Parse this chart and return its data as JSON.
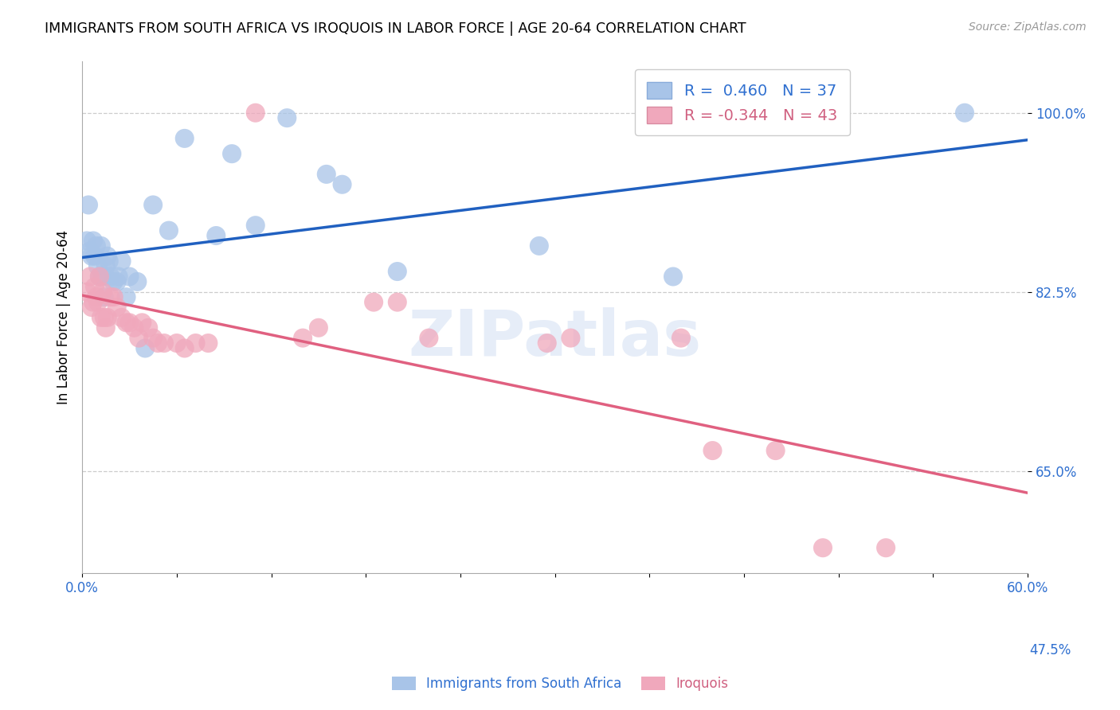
{
  "title": "IMMIGRANTS FROM SOUTH AFRICA VS IROQUOIS IN LABOR FORCE | AGE 20-64 CORRELATION CHART",
  "source": "Source: ZipAtlas.com",
  "ylabel": "In Labor Force | Age 20-64",
  "xlim": [
    0.0,
    0.6
  ],
  "ylim": [
    0.55,
    1.05
  ],
  "xtick_vals": [
    0.0,
    0.06,
    0.12,
    0.18,
    0.24,
    0.3,
    0.36,
    0.42,
    0.48,
    0.54,
    0.6
  ],
  "xtick_labels": [
    "0.0%",
    "",
    "",
    "",
    "",
    "",
    "",
    "",
    "",
    "",
    "60.0%"
  ],
  "ytick_vals": [
    1.0,
    0.825,
    0.65
  ],
  "ytick_labels": [
    "100.0%",
    "82.5%",
    "65.0%"
  ],
  "yhline_vals": [
    1.0,
    0.825,
    0.65,
    0.475
  ],
  "blue_r": 0.46,
  "blue_n": 37,
  "pink_r": -0.344,
  "pink_n": 43,
  "watermark": "ZIPatlas",
  "blue_color": "#a8c4e8",
  "pink_color": "#f0a8bc",
  "blue_line_color": "#2060c0",
  "pink_line_color": "#e06080",
  "blue_scatter": [
    [
      0.003,
      0.875
    ],
    [
      0.004,
      0.91
    ],
    [
      0.005,
      0.865
    ],
    [
      0.006,
      0.86
    ],
    [
      0.007,
      0.875
    ],
    [
      0.008,
      0.86
    ],
    [
      0.009,
      0.87
    ],
    [
      0.01,
      0.85
    ],
    [
      0.011,
      0.84
    ],
    [
      0.012,
      0.87
    ],
    [
      0.013,
      0.84
    ],
    [
      0.014,
      0.82
    ],
    [
      0.015,
      0.85
    ],
    [
      0.016,
      0.86
    ],
    [
      0.017,
      0.855
    ],
    [
      0.018,
      0.84
    ],
    [
      0.02,
      0.835
    ],
    [
      0.022,
      0.835
    ],
    [
      0.023,
      0.84
    ],
    [
      0.025,
      0.855
    ],
    [
      0.028,
      0.82
    ],
    [
      0.03,
      0.84
    ],
    [
      0.035,
      0.835
    ],
    [
      0.04,
      0.77
    ],
    [
      0.045,
      0.91
    ],
    [
      0.055,
      0.885
    ],
    [
      0.065,
      0.975
    ],
    [
      0.085,
      0.88
    ],
    [
      0.095,
      0.96
    ],
    [
      0.11,
      0.89
    ],
    [
      0.13,
      0.995
    ],
    [
      0.155,
      0.94
    ],
    [
      0.165,
      0.93
    ],
    [
      0.2,
      0.845
    ],
    [
      0.29,
      0.87
    ],
    [
      0.375,
      0.84
    ],
    [
      0.56,
      1.0
    ]
  ],
  "pink_scatter": [
    [
      0.003,
      0.825
    ],
    [
      0.005,
      0.84
    ],
    [
      0.006,
      0.81
    ],
    [
      0.007,
      0.815
    ],
    [
      0.008,
      0.83
    ],
    [
      0.009,
      0.82
    ],
    [
      0.01,
      0.815
    ],
    [
      0.011,
      0.84
    ],
    [
      0.012,
      0.8
    ],
    [
      0.013,
      0.825
    ],
    [
      0.014,
      0.8
    ],
    [
      0.015,
      0.79
    ],
    [
      0.016,
      0.8
    ],
    [
      0.018,
      0.82
    ],
    [
      0.02,
      0.82
    ],
    [
      0.022,
      0.81
    ],
    [
      0.025,
      0.8
    ],
    [
      0.028,
      0.795
    ],
    [
      0.03,
      0.795
    ],
    [
      0.033,
      0.79
    ],
    [
      0.036,
      0.78
    ],
    [
      0.038,
      0.795
    ],
    [
      0.042,
      0.79
    ],
    [
      0.045,
      0.78
    ],
    [
      0.048,
      0.775
    ],
    [
      0.052,
      0.775
    ],
    [
      0.06,
      0.775
    ],
    [
      0.065,
      0.77
    ],
    [
      0.072,
      0.775
    ],
    [
      0.08,
      0.775
    ],
    [
      0.11,
      1.0
    ],
    [
      0.14,
      0.78
    ],
    [
      0.15,
      0.79
    ],
    [
      0.185,
      0.815
    ],
    [
      0.2,
      0.815
    ],
    [
      0.22,
      0.78
    ],
    [
      0.295,
      0.775
    ],
    [
      0.31,
      0.78
    ],
    [
      0.38,
      0.78
    ],
    [
      0.4,
      0.67
    ],
    [
      0.44,
      0.67
    ],
    [
      0.47,
      0.575
    ],
    [
      0.51,
      0.575
    ]
  ]
}
